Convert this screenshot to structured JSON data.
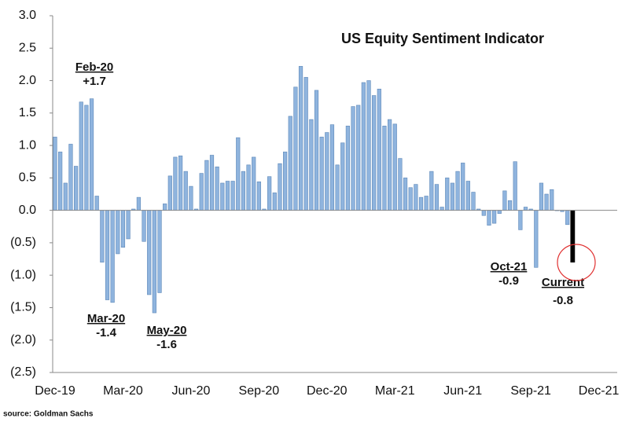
{
  "chart_data": {
    "type": "bar",
    "title": "US Equity Sentiment Indicator",
    "source": "source: Goldman Sachs",
    "categories": [
      "Dec-19",
      null,
      null,
      null,
      null,
      null,
      null,
      null,
      null,
      null,
      null,
      null,
      null,
      "Mar-20",
      null,
      null,
      null,
      null,
      null,
      null,
      null,
      null,
      null,
      null,
      null,
      null,
      "Jun-20",
      null,
      null,
      null,
      null,
      null,
      null,
      null,
      null,
      null,
      null,
      null,
      null,
      "Sep-20",
      null,
      null,
      null,
      null,
      null,
      null,
      null,
      null,
      null,
      null,
      null,
      null,
      "Dec-20",
      null,
      null,
      null,
      null,
      null,
      null,
      null,
      null,
      null,
      null,
      null,
      null,
      "Mar-21",
      null,
      null,
      null,
      null,
      null,
      null,
      null,
      null,
      null,
      null,
      null,
      null,
      "Jun-21",
      null,
      null,
      null,
      null,
      null,
      null,
      null,
      null,
      null,
      null,
      null,
      null,
      "Sep-21",
      null,
      null,
      null,
      null,
      null,
      null,
      null,
      null,
      null,
      null,
      null,
      null,
      "Dec-21"
    ],
    "values": [
      1.13,
      0.9,
      0.42,
      1.02,
      0.68,
      1.67,
      1.62,
      1.72,
      0.22,
      -0.8,
      -1.38,
      -1.42,
      -0.67,
      -0.57,
      -0.44,
      0.02,
      0.2,
      -0.48,
      -1.3,
      -1.58,
      -1.27,
      0.1,
      0.53,
      0.82,
      0.84,
      0.6,
      0.37,
      0.02,
      0.57,
      0.77,
      0.85,
      0.67,
      0.42,
      0.45,
      0.45,
      1.12,
      0.6,
      0.7,
      0.82,
      0.44,
      0.02,
      0.52,
      0.27,
      0.72,
      0.9,
      1.45,
      1.9,
      2.22,
      2.05,
      1.4,
      1.85,
      1.13,
      1.2,
      1.32,
      0.7,
      1.04,
      1.3,
      1.6,
      1.62,
      1.97,
      2.0,
      1.77,
      1.87,
      1.3,
      1.4,
      1.33,
      0.8,
      0.5,
      0.35,
      0.4,
      0.2,
      0.22,
      0.6,
      0.4,
      0.05,
      0.5,
      0.42,
      0.6,
      0.73,
      0.45,
      0.28,
      0.02,
      -0.08,
      -0.23,
      -0.2,
      -0.05,
      0.3,
      0.15,
      0.75,
      -0.3,
      0.05,
      0.02,
      -0.88,
      0.42,
      0.25,
      0.32,
      0,
      -0.02,
      -0.22,
      -0.8,
      null,
      null,
      null,
      null,
      null
    ],
    "color": "#8fb4de",
    "bar_colors": {
      "99": "#000000"
    },
    "ylim": [
      -2.5,
      3.0
    ],
    "yticks": [
      {
        "value": -2.5,
        "label": "(2.5)"
      },
      {
        "value": -2,
        "label": "(2.0)"
      },
      {
        "value": -1.5,
        "label": "(1.5)"
      },
      {
        "value": -1,
        "label": "(1.0)"
      },
      {
        "value": -0.5,
        "label": "(0.5)"
      },
      {
        "value": 0,
        "label": "0.0"
      },
      0.5,
      {
        "value": 1,
        "label": "1.0"
      },
      1.5,
      {
        "value": 2,
        "label": "2.0"
      },
      2.5,
      {
        "value": 3,
        "label": "3.0"
      }
    ],
    "annotations": [
      {
        "text": "Feb-20",
        "note": "+1.7"
      },
      {
        "text": "Mar-20",
        "note": "-1.4"
      },
      {
        "text": "May-20",
        "note": "-1.6"
      },
      {
        "text": "Oct-21",
        "note": "-0.9"
      },
      {
        "text": "Current",
        "note": "-0.8"
      }
    ]
  }
}
